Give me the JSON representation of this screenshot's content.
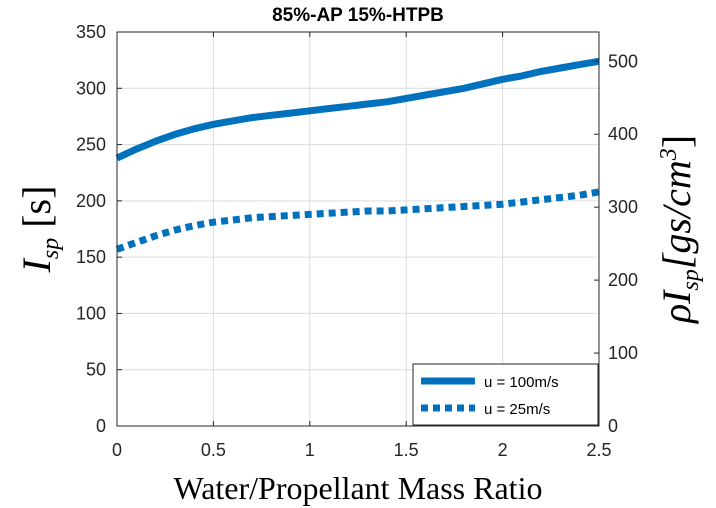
{
  "chart_data": {
    "type": "line",
    "title": "85%-AP 15%-HTPB",
    "xlabel": "Water/Propellant Mass Ratio",
    "ylabel": {
      "main": "I",
      "sub": "sp",
      "rest": " [s]"
    },
    "ylabel_right": {
      "rho": "ρI",
      "sub": "sp",
      "rest": "[gs/cm",
      "sup": "3",
      "close": "]"
    },
    "xlim": [
      0,
      2.5
    ],
    "ylim": [
      0,
      350
    ],
    "ylim_right_ticks": [
      0,
      100,
      200,
      300,
      400,
      500
    ],
    "x_ticks": [
      0,
      0.5,
      1,
      1.5,
      2,
      2.5
    ],
    "y_ticks": [
      0,
      50,
      100,
      150,
      200,
      250,
      300,
      350
    ],
    "grid": true,
    "legend_position": "bottom-right",
    "series": [
      {
        "name": "u = 100m/s",
        "style": "solid",
        "color": "#0072BD",
        "x": [
          0,
          0.1,
          0.2,
          0.3,
          0.4,
          0.5,
          0.6,
          0.7,
          0.8,
          0.9,
          1.0,
          1.1,
          1.2,
          1.3,
          1.4,
          1.5,
          1.6,
          1.7,
          1.8,
          1.9,
          2.0,
          2.1,
          2.2,
          2.3,
          2.4,
          2.5
        ],
        "y": [
          238,
          246,
          253,
          259,
          264,
          268,
          271,
          274,
          276,
          278,
          280,
          282,
          284,
          286,
          288,
          291,
          294,
          297,
          300,
          304,
          308,
          311,
          315,
          318,
          321,
          324
        ]
      },
      {
        "name": "u = 25m/s",
        "style": "dotted",
        "color": "#0072BD",
        "x": [
          0,
          0.1,
          0.2,
          0.3,
          0.4,
          0.5,
          0.6,
          0.7,
          0.8,
          0.9,
          1.0,
          1.1,
          1.2,
          1.3,
          1.4,
          1.5,
          1.6,
          1.7,
          1.8,
          1.9,
          2.0,
          2.1,
          2.2,
          2.3,
          2.4,
          2.5
        ],
        "y": [
          157,
          163,
          169,
          174,
          178,
          181,
          183,
          185,
          186,
          187,
          188,
          189,
          190,
          191,
          191,
          192,
          193,
          194,
          195,
          196,
          197,
          199,
          201,
          203,
          205,
          208
        ]
      }
    ]
  }
}
